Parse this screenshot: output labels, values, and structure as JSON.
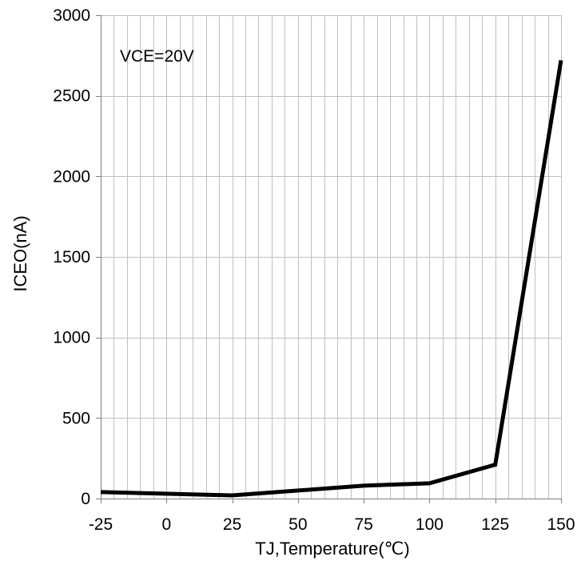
{
  "chart_data": {
    "type": "line",
    "title": "",
    "xlabel": "TJ,Temperature(℃)",
    "ylabel": "ICEO(nA)",
    "xlim": [
      -25,
      150
    ],
    "ylim": [
      0,
      3000
    ],
    "x_ticks": [
      -25,
      0,
      25,
      50,
      75,
      100,
      125,
      150
    ],
    "y_ticks": [
      0,
      500,
      1000,
      1500,
      2000,
      2500,
      3000
    ],
    "x_minor_step": 5,
    "grid": true,
    "legend": "none",
    "annotation": "VCE=20V",
    "line_color": "#000000",
    "grid_color": "#bfbfbf",
    "series": [
      {
        "x": [
          -25,
          25,
          75,
          100,
          125,
          150
        ],
        "y": [
          40,
          20,
          80,
          95,
          210,
          2720
        ]
      }
    ]
  }
}
